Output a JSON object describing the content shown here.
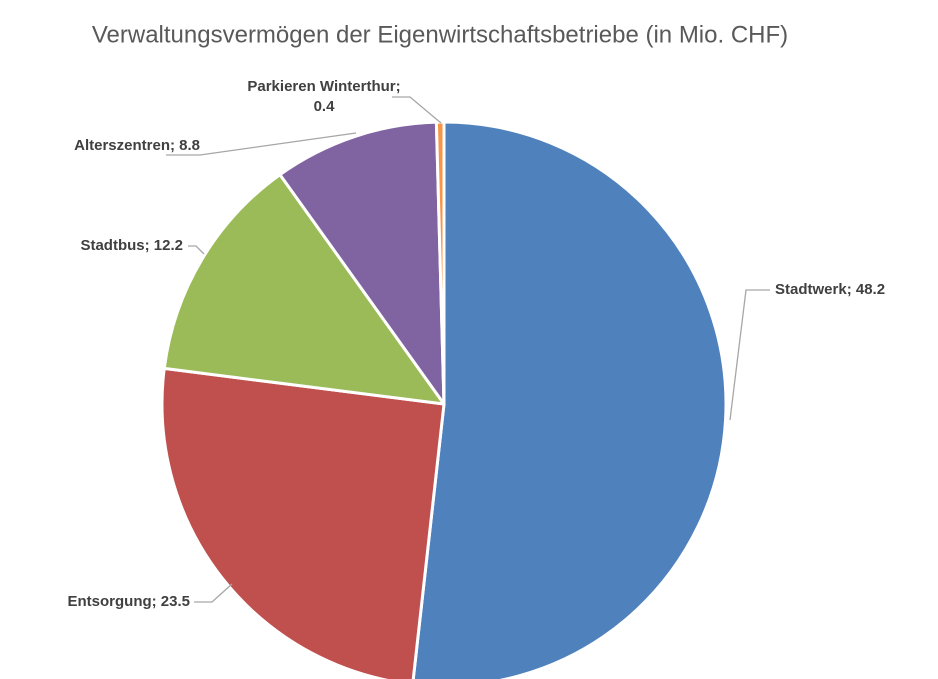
{
  "chart_data": {
    "type": "pie",
    "title": "Verwaltungsvermögen der Eigenwirtschaftsbetriebe (in Mio. CHF)",
    "values": [
      48.2,
      23.5,
      12.2,
      8.8,
      0.4
    ],
    "value_labels": [
      "Stadtwerk;  48.2",
      "Entsorgung;  23.5",
      "Stadtbus;  12.2",
      "Alterszentren;  8.8",
      [
        "Parkieren Winterthur;",
        "0.4"
      ]
    ],
    "colors": [
      "#4f81bd",
      "#c0504d",
      "#9bbb59",
      "#8064a2",
      "#f79646"
    ],
    "start_angle": 0,
    "direction": "clockwise"
  }
}
